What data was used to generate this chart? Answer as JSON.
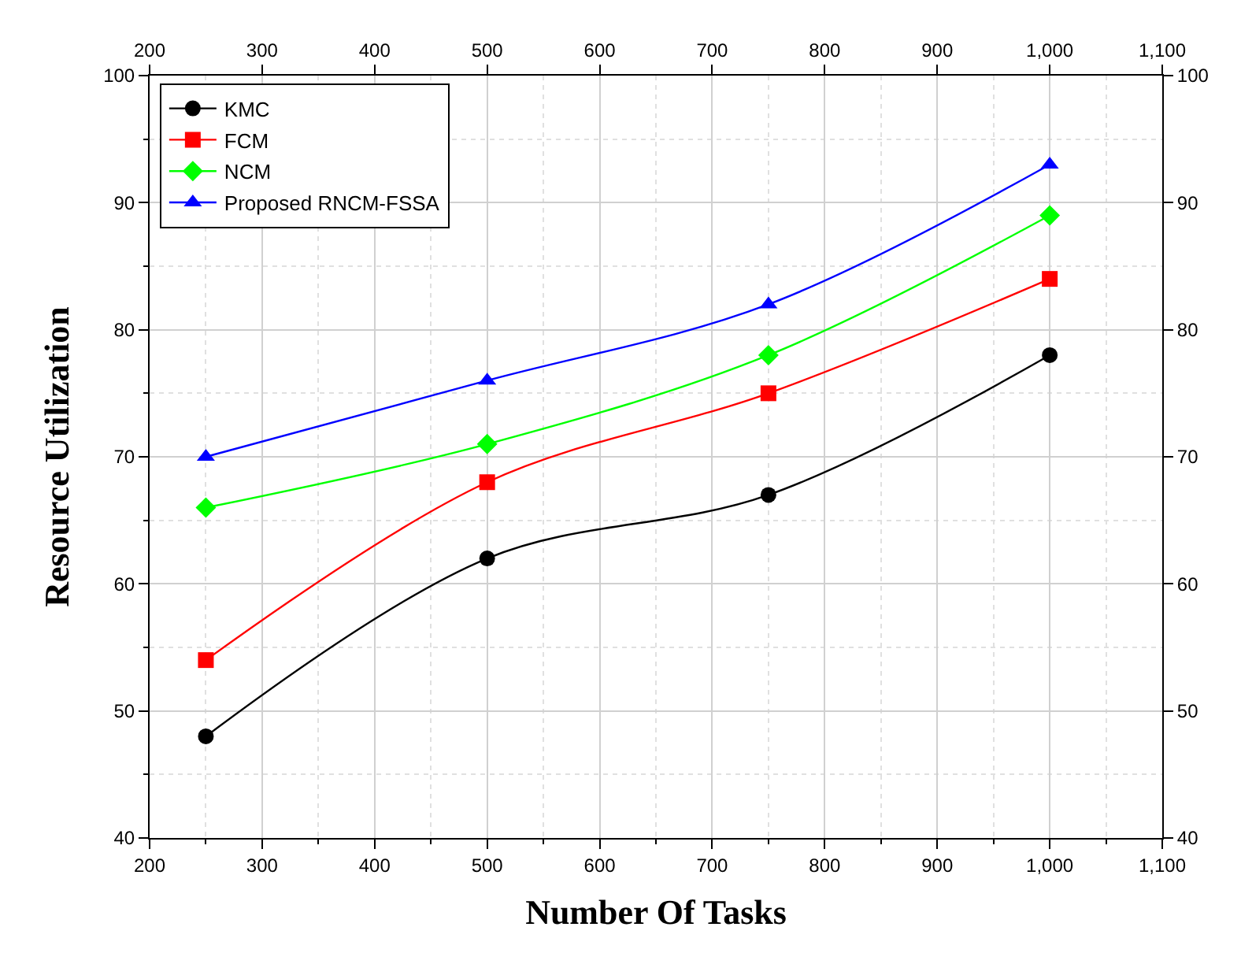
{
  "chart_data": {
    "type": "line",
    "xlabel": "Number Of Tasks",
    "ylabel": "Resource Utilization",
    "x": [
      250,
      500,
      750,
      1000
    ],
    "series": [
      {
        "name": "KMC",
        "color": "#000000",
        "marker": "circle",
        "values": [
          48,
          62,
          67,
          78
        ]
      },
      {
        "name": "FCM",
        "color": "#ff0000",
        "marker": "square",
        "values": [
          54,
          68,
          75,
          84
        ]
      },
      {
        "name": "NCM",
        "color": "#00ff00",
        "marker": "diamond",
        "values": [
          66,
          71,
          78,
          89
        ]
      },
      {
        "name": "Proposed RNCM-FSSA",
        "color": "#0000ff",
        "marker": "triangle",
        "values": [
          70,
          76,
          82,
          93
        ]
      }
    ],
    "xlim": [
      200,
      1100
    ],
    "xticks": [
      200,
      300,
      400,
      500,
      600,
      700,
      800,
      900,
      {
        "value": 1000,
        "label": "1,000"
      },
      {
        "value": 1100,
        "label": "1,100"
      }
    ],
    "x2lim": [
      200,
      1100
    ],
    "x2ticks": [
      200,
      300,
      400,
      500,
      600,
      700,
      800,
      900,
      {
        "value": 1000,
        "label": "1,000"
      },
      {
        "value": 1100,
        "label": "1,100"
      }
    ],
    "ylim": [
      40,
      100
    ],
    "yticks": [
      40,
      50,
      60,
      70,
      80,
      90,
      100
    ],
    "y2lim": [
      40,
      100
    ],
    "y2ticks": [
      40,
      50,
      60,
      70,
      80,
      90,
      100
    ],
    "grid": true,
    "legend": "top left",
    "line_style": "solid"
  }
}
